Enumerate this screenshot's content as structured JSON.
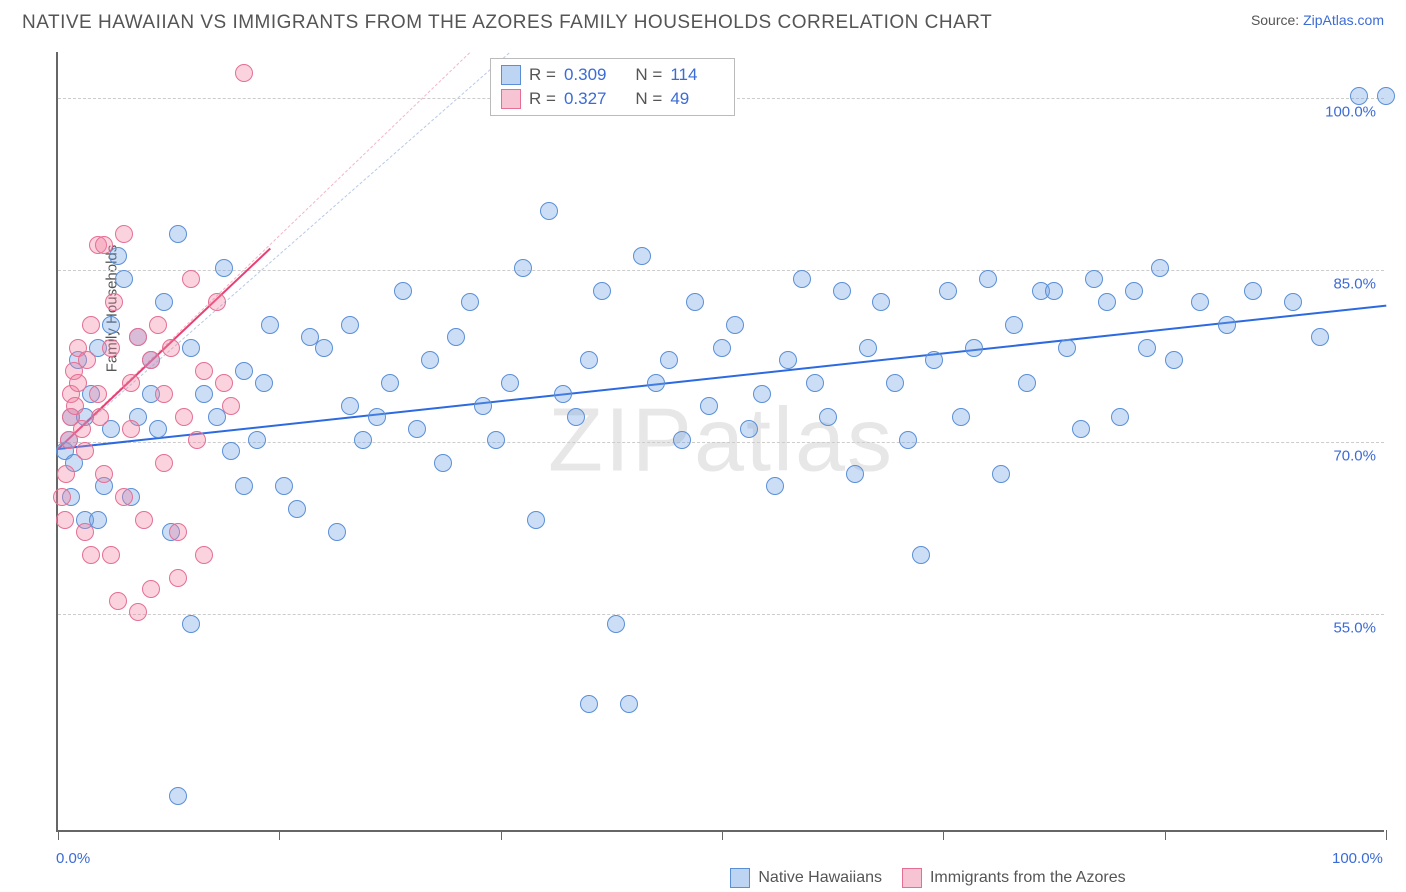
{
  "title": "NATIVE HAWAIIAN VS IMMIGRANTS FROM THE AZORES FAMILY HOUSEHOLDS CORRELATION CHART",
  "source_prefix": "Source: ",
  "source_link": "ZipAtlas.com",
  "ylabel": "Family Households",
  "watermark": "ZIPatlas",
  "chart": {
    "type": "scatter",
    "background_color": "#ffffff",
    "grid_color": "#cccccc",
    "axis_color": "#666666",
    "xlim": [
      0,
      100
    ],
    "ylim": [
      36,
      104
    ],
    "xtick_positions": [
      0,
      16.67,
      33.33,
      50,
      66.67,
      83.33,
      100
    ],
    "x_labels": {
      "min": "0.0%",
      "max": "100.0%"
    },
    "y_gridlines": [
      {
        "value": 55.0,
        "label": "55.0%"
      },
      {
        "value": 70.0,
        "label": "70.0%"
      },
      {
        "value": 85.0,
        "label": "85.0%"
      },
      {
        "value": 100.0,
        "label": "100.0%"
      }
    ],
    "marker_radius": 9,
    "marker_stroke_width": 1.5,
    "series": [
      {
        "id": "native_hawaiians",
        "label": "Native Hawaiians",
        "fill_color": "rgba(110,160,230,0.35)",
        "stroke_color": "#5a8fd6",
        "swatch_fill": "#bdd5f2",
        "swatch_stroke": "#5a8fd6",
        "R": "0.309",
        "N": "114",
        "trend": {
          "x1": 0,
          "y1": 69.5,
          "x2": 100,
          "y2": 82.0,
          "color": "#2d6ae0",
          "width": 2
        },
        "dashed_guide": {
          "x1": 0,
          "y1": 69.5,
          "x2": 34,
          "y2": 104,
          "color": "#b7c9e8"
        },
        "points": [
          [
            0.5,
            69
          ],
          [
            0.8,
            70
          ],
          [
            1,
            72
          ],
          [
            1,
            65
          ],
          [
            1.2,
            68
          ],
          [
            1.5,
            77
          ],
          [
            2,
            63
          ],
          [
            2,
            72
          ],
          [
            2.5,
            74
          ],
          [
            3,
            78
          ],
          [
            3,
            63
          ],
          [
            3.5,
            66
          ],
          [
            4,
            71
          ],
          [
            4,
            80
          ],
          [
            4.5,
            86
          ],
          [
            5,
            84
          ],
          [
            5.5,
            65
          ],
          [
            6,
            79
          ],
          [
            6,
            72
          ],
          [
            7,
            74
          ],
          [
            7,
            77
          ],
          [
            7.5,
            71
          ],
          [
            8,
            82
          ],
          [
            8.5,
            62
          ],
          [
            9,
            39
          ],
          [
            9,
            88
          ],
          [
            10,
            78
          ],
          [
            10,
            54
          ],
          [
            11,
            74
          ],
          [
            12,
            72
          ],
          [
            12.5,
            85
          ],
          [
            13,
            69
          ],
          [
            14,
            76
          ],
          [
            14,
            66
          ],
          [
            15,
            70
          ],
          [
            15.5,
            75
          ],
          [
            16,
            80
          ],
          [
            17,
            66
          ],
          [
            18,
            64
          ],
          [
            19,
            79
          ],
          [
            20,
            78
          ],
          [
            21,
            62
          ],
          [
            22,
            73
          ],
          [
            22,
            80
          ],
          [
            23,
            70
          ],
          [
            24,
            72
          ],
          [
            25,
            75
          ],
          [
            26,
            83
          ],
          [
            27,
            71
          ],
          [
            28,
            77
          ],
          [
            29,
            68
          ],
          [
            30,
            79
          ],
          [
            31,
            82
          ],
          [
            32,
            73
          ],
          [
            33,
            70
          ],
          [
            34,
            75
          ],
          [
            35,
            85
          ],
          [
            36,
            63
          ],
          [
            37,
            90
          ],
          [
            38,
            74
          ],
          [
            39,
            72
          ],
          [
            40,
            47
          ],
          [
            40,
            77
          ],
          [
            41,
            83
          ],
          [
            42,
            54
          ],
          [
            43,
            47
          ],
          [
            44,
            86
          ],
          [
            45,
            75
          ],
          [
            46,
            77
          ],
          [
            47,
            70
          ],
          [
            48,
            82
          ],
          [
            49,
            73
          ],
          [
            50,
            78
          ],
          [
            51,
            80
          ],
          [
            52,
            71
          ],
          [
            53,
            74
          ],
          [
            54,
            66
          ],
          [
            55,
            77
          ],
          [
            56,
            84
          ],
          [
            57,
            75
          ],
          [
            58,
            72
          ],
          [
            59,
            83
          ],
          [
            60,
            67
          ],
          [
            61,
            78
          ],
          [
            62,
            82
          ],
          [
            63,
            75
          ],
          [
            64,
            70
          ],
          [
            65,
            60
          ],
          [
            66,
            77
          ],
          [
            67,
            83
          ],
          [
            68,
            72
          ],
          [
            69,
            78
          ],
          [
            70,
            84
          ],
          [
            71,
            67
          ],
          [
            72,
            80
          ],
          [
            73,
            75
          ],
          [
            74,
            83
          ],
          [
            75,
            83
          ],
          [
            76,
            78
          ],
          [
            77,
            71
          ],
          [
            78,
            84
          ],
          [
            79,
            82
          ],
          [
            80,
            72
          ],
          [
            81,
            83
          ],
          [
            82,
            78
          ],
          [
            83,
            85
          ],
          [
            84,
            77
          ],
          [
            86,
            82
          ],
          [
            88,
            80
          ],
          [
            90,
            83
          ],
          [
            93,
            82
          ],
          [
            95,
            79
          ],
          [
            98,
            100
          ],
          [
            100,
            100
          ]
        ]
      },
      {
        "id": "azores",
        "label": "Immigrants from the Azores",
        "fill_color": "rgba(240,130,160,0.35)",
        "stroke_color": "#e56f94",
        "swatch_fill": "#f6c4d3",
        "swatch_stroke": "#e56f94",
        "R": "0.327",
        "N": "49",
        "trend": {
          "x1": 0,
          "y1": 69.5,
          "x2": 16,
          "y2": 87.0,
          "color": "#e83f74",
          "width": 2
        },
        "dashed_guide": {
          "x1": 0,
          "y1": 69.5,
          "x2": 31,
          "y2": 104,
          "color": "#f4b6c7"
        },
        "points": [
          [
            0.3,
            65
          ],
          [
            0.5,
            63
          ],
          [
            0.6,
            67
          ],
          [
            0.8,
            70
          ],
          [
            1,
            72
          ],
          [
            1,
            74
          ],
          [
            1.2,
            76
          ],
          [
            1.3,
            73
          ],
          [
            1.5,
            75
          ],
          [
            1.5,
            78
          ],
          [
            1.8,
            71
          ],
          [
            2,
            69
          ],
          [
            2,
            62
          ],
          [
            2.2,
            77
          ],
          [
            2.5,
            80
          ],
          [
            2.5,
            60
          ],
          [
            3,
            87
          ],
          [
            3,
            74
          ],
          [
            3.2,
            72
          ],
          [
            3.5,
            87
          ],
          [
            3.5,
            67
          ],
          [
            4,
            78
          ],
          [
            4,
            60
          ],
          [
            4.2,
            82
          ],
          [
            4.5,
            56
          ],
          [
            5,
            88
          ],
          [
            5,
            65
          ],
          [
            5.5,
            71
          ],
          [
            5.5,
            75
          ],
          [
            6,
            79
          ],
          [
            6,
            55
          ],
          [
            6.5,
            63
          ],
          [
            7,
            77
          ],
          [
            7,
            57
          ],
          [
            7.5,
            80
          ],
          [
            8,
            68
          ],
          [
            8,
            74
          ],
          [
            8.5,
            78
          ],
          [
            9,
            62
          ],
          [
            9,
            58
          ],
          [
            9.5,
            72
          ],
          [
            10,
            84
          ],
          [
            10.5,
            70
          ],
          [
            11,
            76
          ],
          [
            11,
            60
          ],
          [
            12,
            82
          ],
          [
            12.5,
            75
          ],
          [
            13,
            73
          ],
          [
            14,
            102
          ]
        ]
      }
    ]
  }
}
